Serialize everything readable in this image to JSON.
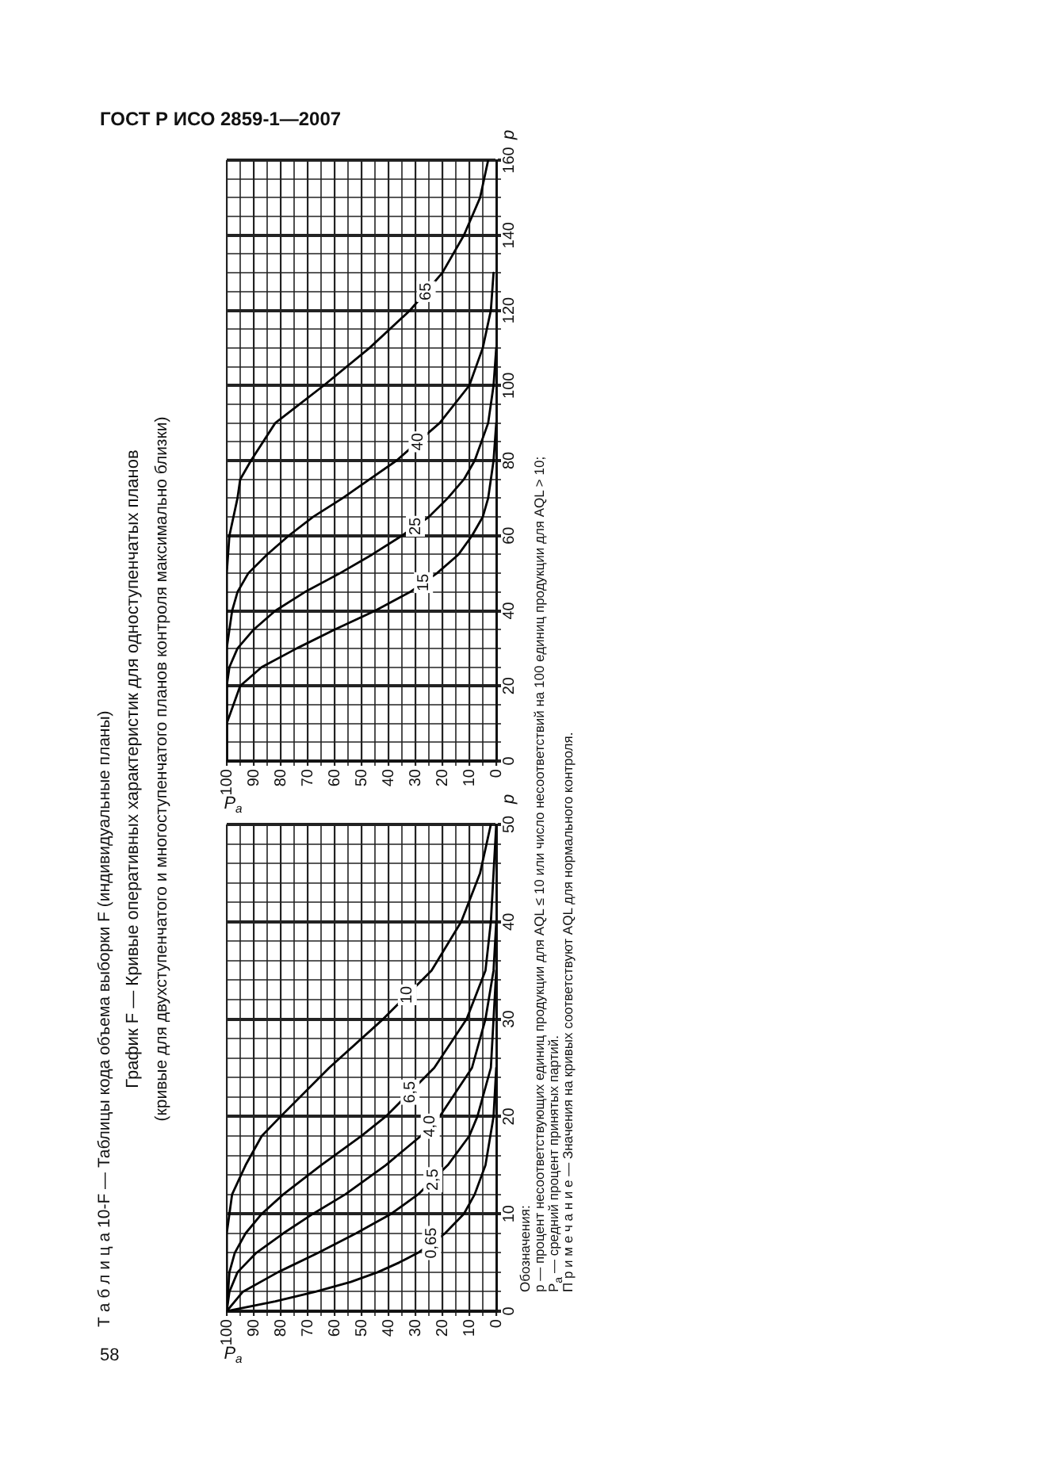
{
  "chart_data": [
    {
      "type": "line",
      "title": "График F — Кривые оперативных характеристик для одноступенчатых планов",
      "subtitle": "(кривые для двухступенчатого и многоступенчатого планов контроля максимально близки)",
      "xlabel": "P$_{a}$",
      "ylabel": "p",
      "annotations": [
        "ГОСТ Р ИСО 2859-1—2007",
        "58",
        "Т а б л и ц а 10-F — Таблицы кода объема выборки F (индивидуальные планы)",
        "Обозначения:",
        "p — процент несоответствующих единиц продукции для AQL ≤ 10 или число несоответствий на 100 единиц продукции для AQL > 10;",
        "P$_{a}$ — средний процент принятых партий.",
        "П р и м е ч а н и е — Значения на кривых соответствуют AQL для нормального контроля."
      ],
      "series": [
        {
          "name": "0,65",
          "color": "#000000",
          "x": [
            100,
            82,
            67,
            54,
            44,
            36,
            29,
            19,
            12,
            8,
            4,
            1,
            0
          ],
          "values": [
            0,
            1,
            2,
            3,
            4,
            5,
            6,
            8,
            10,
            12,
            15,
            20,
            25
          ]
        },
        {
          "name": "2,5",
          "color": "#000000",
          "x": [
            100,
            94,
            81,
            66,
            52,
            39,
            29,
            18,
            10,
            7,
            2,
            1,
            0
          ],
          "values": [
            0,
            2,
            4,
            6,
            8,
            10,
            12,
            15,
            18,
            20,
            25,
            30,
            35
          ]
        },
        {
          "name": "4,0",
          "color": "#000000",
          "x": [
            100,
            99,
            96,
            89,
            79,
            68,
            56,
            41,
            28,
            21,
            9,
            4,
            1,
            0
          ],
          "values": [
            0,
            2,
            4,
            6,
            8,
            10,
            12,
            15,
            18,
            20,
            25,
            30,
            35,
            40
          ]
        },
        {
          "name": "6,5",
          "color": "#000000",
          "x": [
            100,
            99,
            97,
            93,
            87,
            79,
            65,
            50,
            41,
            23,
            11,
            4,
            2,
            1,
            0
          ],
          "values": [
            0,
            4,
            6,
            8,
            10,
            12,
            15,
            18,
            20,
            25,
            30,
            35,
            40,
            45,
            50
          ]
        },
        {
          "name": "10",
          "color": "#000000",
          "x": [
            100,
            100,
            99,
            98,
            93,
            87,
            80,
            62,
            42,
            24,
            13,
            6,
            2
          ],
          "values": [
            0,
            8,
            10,
            12,
            15,
            18,
            20,
            25,
            30,
            35,
            40,
            45,
            50
          ]
        }
      ],
      "xlim": [
        100,
        0
      ],
      "ylim": [
        0,
        50
      ],
      "xticks": [
        0,
        {
          "value": 5,
          "label": null
        },
        10,
        {
          "value": 15,
          "label": null
        },
        20,
        {
          "value": 25,
          "label": null
        },
        30,
        {
          "value": 35,
          "label": null
        },
        40,
        {
          "value": 45,
          "label": null
        },
        50,
        {
          "value": 55,
          "label": null
        },
        60,
        {
          "value": 65,
          "label": null
        },
        70,
        {
          "value": 75,
          "label": null
        },
        80,
        {
          "value": 85,
          "label": null
        },
        90,
        {
          "value": 95,
          "label": null
        },
        100
      ],
      "yticks": [
        0,
        {
          "value": 2,
          "label": null
        },
        {
          "value": 4,
          "label": null
        },
        {
          "value": 6,
          "label": null
        },
        {
          "value": 8,
          "label": null
        },
        10,
        {
          "value": 12,
          "label": null
        },
        {
          "value": 14,
          "label": null
        },
        {
          "value": 16,
          "label": null
        },
        {
          "value": 18,
          "label": null
        },
        20,
        {
          "value": 22,
          "label": null
        },
        {
          "value": 24,
          "label": null
        },
        {
          "value": 26,
          "label": null
        },
        {
          "value": 28,
          "label": null
        },
        30,
        {
          "value": 32,
          "label": null
        },
        {
          "value": 34,
          "label": null
        },
        {
          "value": 36,
          "label": null
        },
        {
          "value": 38,
          "label": null
        },
        40,
        {
          "value": 42,
          "label": null
        },
        {
          "value": 44,
          "label": null
        },
        {
          "value": 46,
          "label": null
        },
        {
          "value": 48,
          "label": null
        },
        50
      ],
      "grid": true,
      "legend": false,
      "marker": "none",
      "line_style": "solid"
    },
    {
      "type": "line",
      "xlabel": "P$_{a}$",
      "ylabel": "p",
      "series": [
        {
          "name": "15",
          "color": "#000000",
          "x": [
            100,
            100,
            95,
            87,
            74,
            60,
            45,
            32,
            22,
            14,
            9,
            5,
            3,
            2,
            1,
            0
          ],
          "values": [
            0,
            10,
            20,
            25,
            30,
            35,
            40,
            45,
            50,
            55,
            60,
            65,
            70,
            75,
            80,
            90
          ]
        },
        {
          "name": "25",
          "color": "#000000",
          "x": [
            100,
            100,
            99,
            96,
            90,
            82,
            71,
            58,
            46,
            35,
            25,
            18,
            12,
            8,
            3,
            1,
            0
          ],
          "values": [
            0,
            20,
            25,
            30,
            35,
            40,
            45,
            50,
            55,
            60,
            65,
            70,
            75,
            80,
            90,
            100,
            110
          ]
        },
        {
          "name": "40",
          "color": "#000000",
          "x": [
            100,
            100,
            98,
            96,
            92,
            85,
            77,
            68,
            57,
            47,
            37,
            21,
            10,
            5,
            2,
            1
          ],
          "values": [
            0,
            30,
            40,
            45,
            50,
            55,
            60,
            65,
            70,
            75,
            80,
            90,
            100,
            110,
            120,
            130
          ]
        },
        {
          "name": "65",
          "color": "#000000",
          "x": [
            100,
            100,
            99,
            96,
            95,
            91,
            82,
            64,
            47,
            32,
            20,
            12,
            6,
            3
          ],
          "values": [
            0,
            50,
            60,
            70,
            75,
            80,
            90,
            100,
            110,
            120,
            130,
            140,
            150,
            160
          ]
        }
      ],
      "xlim": [
        100,
        0
      ],
      "ylim": [
        0,
        160
      ],
      "xticks": [
        0,
        {
          "value": 5,
          "label": null
        },
        10,
        {
          "value": 15,
          "label": null
        },
        20,
        {
          "value": 25,
          "label": null
        },
        30,
        {
          "value": 35,
          "label": null
        },
        40,
        {
          "value": 45,
          "label": null
        },
        50,
        {
          "value": 55,
          "label": null
        },
        60,
        {
          "value": 65,
          "label": null
        },
        70,
        {
          "value": 75,
          "label": null
        },
        80,
        {
          "value": 85,
          "label": null
        },
        90,
        {
          "value": 95,
          "label": null
        },
        100
      ],
      "yticks": [
        0,
        {
          "value": 5,
          "label": null
        },
        {
          "value": 10,
          "label": null
        },
        {
          "value": 15,
          "label": null
        },
        20,
        {
          "value": 25,
          "label": null
        },
        {
          "value": 30,
          "label": null
        },
        {
          "value": 35,
          "label": null
        },
        40,
        {
          "value": 45,
          "label": null
        },
        {
          "value": 50,
          "label": null
        },
        {
          "value": 55,
          "label": null
        },
        60,
        {
          "value": 65,
          "label": null
        },
        {
          "value": 70,
          "label": null
        },
        {
          "value": 75,
          "label": null
        },
        80,
        {
          "value": 85,
          "label": null
        },
        {
          "value": 90,
          "label": null
        },
        {
          "value": 95,
          "label": null
        },
        100,
        {
          "value": 105,
          "label": null
        },
        {
          "value": 110,
          "label": null
        },
        {
          "value": 115,
          "label": null
        },
        120,
        {
          "value": 125,
          "label": null
        },
        {
          "value": 130,
          "label": null
        },
        {
          "value": 135,
          "label": null
        },
        140,
        {
          "value": 145,
          "label": null
        },
        {
          "value": 150,
          "label": null
        },
        {
          "value": 155,
          "label": null
        },
        160
      ],
      "grid": true,
      "legend": false,
      "marker": "none",
      "line_style": "solid"
    }
  ]
}
